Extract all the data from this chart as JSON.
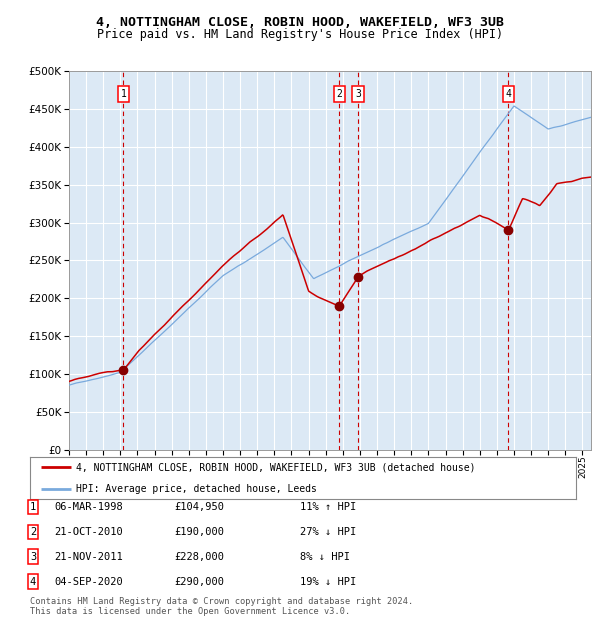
{
  "title1": "4, NOTTINGHAM CLOSE, ROBIN HOOD, WAKEFIELD, WF3 3UB",
  "title2": "Price paid vs. HM Land Registry's House Price Index (HPI)",
  "legend_line1": "4, NOTTINGHAM CLOSE, ROBIN HOOD, WAKEFIELD, WF3 3UB (detached house)",
  "legend_line2": "HPI: Average price, detached house, Leeds",
  "footnote1": "Contains HM Land Registry data © Crown copyright and database right 2024.",
  "footnote2": "This data is licensed under the Open Government Licence v3.0.",
  "transactions": [
    {
      "num": 1,
      "date": "06-MAR-1998",
      "price": 104950,
      "pct": "11%",
      "dir": "↑"
    },
    {
      "num": 2,
      "date": "21-OCT-2010",
      "price": 190000,
      "pct": "27%",
      "dir": "↓"
    },
    {
      "num": 3,
      "date": "21-NOV-2011",
      "price": 228000,
      "pct": "8%",
      "dir": "↓"
    },
    {
      "num": 4,
      "date": "04-SEP-2020",
      "price": 290000,
      "pct": "19%",
      "dir": "↓"
    }
  ],
  "sale_years": [
    1998.18,
    2010.8,
    2011.89,
    2020.67
  ],
  "sale_prices": [
    104950,
    190000,
    228000,
    290000
  ],
  "background_color": "#dce9f5",
  "red_line_color": "#cc0000",
  "blue_line_color": "#7aaadd",
  "marker_color": "#880000",
  "dashed_vline_color": "#cc0000",
  "grid_color": "#ffffff",
  "ylim": [
    0,
    500000
  ],
  "yticks": [
    0,
    50000,
    100000,
    150000,
    200000,
    250000,
    300000,
    350000,
    400000,
    450000,
    500000
  ]
}
